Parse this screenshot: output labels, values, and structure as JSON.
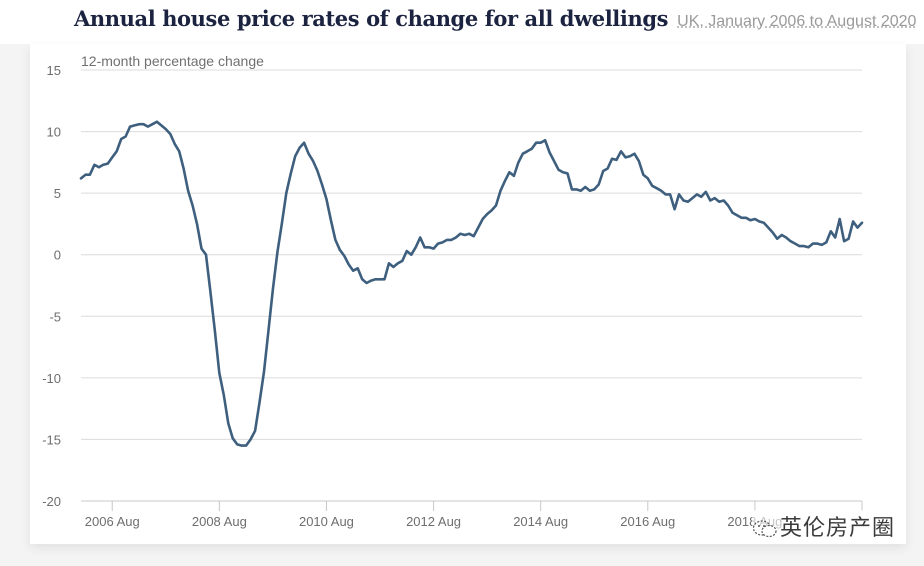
{
  "header": {
    "title": "Annual house price rates of change for all dwellings",
    "subtitle": "UK, January 2006 to August 2020"
  },
  "watermark": {
    "text": "英伦房产圈",
    "icon": "wechat-icon"
  },
  "colors": {
    "line": "#3e5f7e",
    "grid": "#dcdcdc",
    "text": "#6e6e6e",
    "title": "#1b2340"
  },
  "chart_data": {
    "type": "line",
    "title": "Annual house price rates of change for all dwellings",
    "subtitle": "UK, January 2006 to August 2020",
    "xlabel": "",
    "ylabel": "12-month percentage change",
    "ylim": [
      -20,
      15
    ],
    "yticks": [
      15,
      10,
      5,
      0,
      -5,
      -10,
      -15,
      -20
    ],
    "grid": true,
    "legend": "none",
    "x_start": "2006-01",
    "x_end": "2020-08",
    "x_frequency": "monthly",
    "xticks": [
      "2006 Aug",
      "2008 Aug",
      "2010 Aug",
      "2012 Aug",
      "2014 Aug",
      "2016 Aug",
      "2018 Aug"
    ],
    "series": [
      {
        "name": "12-month percentage change",
        "values": [
          6.2,
          6.5,
          6.5,
          7.3,
          7.1,
          7.3,
          7.4,
          7.9,
          8.4,
          9.4,
          9.6,
          10.4,
          10.5,
          10.6,
          10.6,
          10.4,
          10.6,
          10.8,
          10.5,
          10.2,
          9.8,
          9.0,
          8.4,
          7.0,
          5.2,
          4.0,
          2.5,
          0.5,
          0.0,
          -3.0,
          -6.2,
          -9.6,
          -11.4,
          -13.7,
          -14.9,
          -15.4,
          -15.5,
          -15.5,
          -15.0,
          -14.3,
          -12.0,
          -9.5,
          -6.2,
          -2.8,
          0.2,
          2.5,
          5.0,
          6.6,
          8.0,
          8.7,
          9.1,
          8.2,
          7.6,
          6.8,
          5.7,
          4.5,
          2.8,
          1.2,
          0.4,
          -0.1,
          -0.8,
          -1.3,
          -1.1,
          -2.0,
          -2.3,
          -2.1,
          -2.0,
          -2.0,
          -2.0,
          -0.7,
          -1.0,
          -0.7,
          -0.5,
          0.3,
          0.0,
          0.6,
          1.4,
          0.6,
          0.6,
          0.5,
          0.9,
          1.0,
          1.2,
          1.2,
          1.4,
          1.7,
          1.6,
          1.7,
          1.5,
          2.2,
          2.9,
          3.3,
          3.6,
          4.0,
          5.2,
          6.0,
          6.7,
          6.4,
          7.5,
          8.2,
          8.4,
          8.6,
          9.1,
          9.1,
          9.3,
          8.3,
          7.6,
          6.9,
          6.7,
          6.6,
          5.3,
          5.3,
          5.2,
          5.5,
          5.2,
          5.3,
          5.7,
          6.8,
          7.0,
          7.8,
          7.7,
          8.4,
          7.9,
          8.0,
          8.2,
          7.6,
          6.5,
          6.2,
          5.6,
          5.4,
          5.2,
          4.9,
          4.9,
          3.7,
          4.9,
          4.4,
          4.3,
          4.6,
          4.9,
          4.7,
          5.1,
          4.4,
          4.6,
          4.3,
          4.4,
          4.0,
          3.4,
          3.2,
          3.0,
          3.0,
          2.8,
          2.9,
          2.7,
          2.6,
          2.2,
          1.8,
          1.3,
          1.6,
          1.4,
          1.1,
          0.9,
          0.7,
          0.7,
          0.6,
          0.9,
          0.9,
          0.8,
          1.0,
          1.9,
          1.4,
          2.9,
          1.1,
          1.3,
          2.7,
          2.2,
          2.6
        ]
      }
    ]
  }
}
